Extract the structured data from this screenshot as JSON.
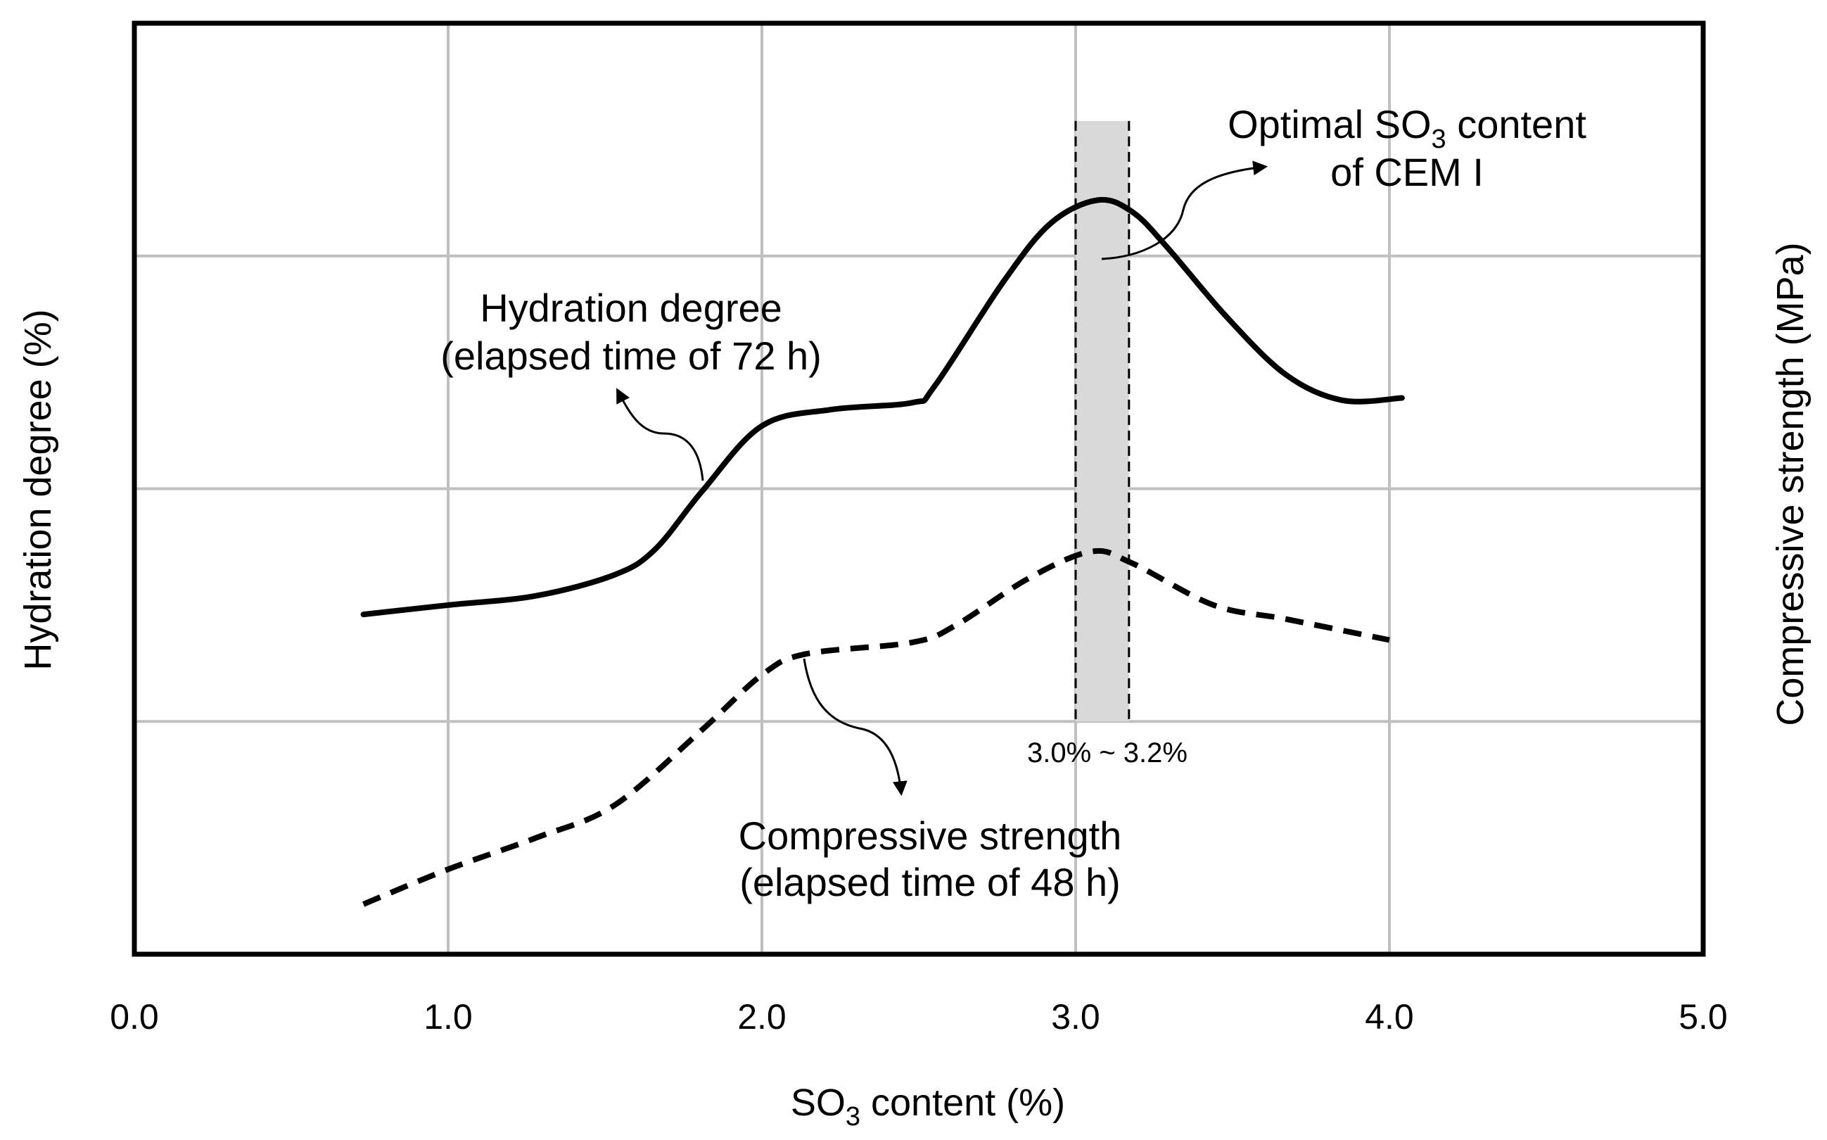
{
  "chart_data": {
    "type": "line",
    "xlabel": "SO3 content (%)",
    "xlabel_main": "SO",
    "xlabel_sub": "3",
    "xlabel_rest": " content (%)",
    "ylabel_left": "Hydration degree (%)",
    "ylabel_right": "Compressive strength (MPa)",
    "xlim": [
      0,
      5
    ],
    "ylim": [
      0,
      4
    ],
    "x_ticks": [
      "0.0",
      "1.0",
      "2.0",
      "3.0",
      "4.0",
      "5.0"
    ],
    "y_ticks_labeled": false,
    "grid": true,
    "series": [
      {
        "name": "Hydration degree (elapsed time of 72 h)",
        "style": "solid",
        "x": [
          0.73,
          1.0,
          1.28,
          1.53,
          1.66,
          1.81,
          2.0,
          2.22,
          2.48,
          2.55,
          2.77,
          2.92,
          3.07,
          3.18,
          3.29,
          3.48,
          3.67,
          3.85,
          4.04
        ],
        "y": [
          1.46,
          1.5,
          1.54,
          1.63,
          1.74,
          1.99,
          2.27,
          2.34,
          2.37,
          2.44,
          2.89,
          3.14,
          3.24,
          3.19,
          3.04,
          2.74,
          2.49,
          2.38,
          2.39
        ]
      },
      {
        "name": "Compressive strength (elapsed time of 48 h)",
        "style": "dashed",
        "x": [
          0.73,
          1.0,
          1.28,
          1.53,
          1.81,
          2.0,
          2.14,
          2.48,
          2.62,
          2.85,
          3.05,
          3.18,
          3.44,
          3.67,
          4.0
        ],
        "y": [
          0.215,
          0.365,
          0.5,
          0.64,
          0.965,
          1.2,
          1.29,
          1.34,
          1.415,
          1.615,
          1.73,
          1.68,
          1.5,
          1.44,
          1.35
        ]
      }
    ],
    "band": {
      "x": [
        3.0,
        3.17
      ],
      "y_top": 3.58,
      "color": "#d9d9d9",
      "label": "3.0% ~ 3.2%"
    },
    "annotations": {
      "hydration_line1": "Hydration degree",
      "hydration_line2": "(elapsed time of 72 h)",
      "strength_line1": "Compressive strength",
      "strength_line2": "(elapsed time  of 48 h)",
      "optimal_line1_main": "Optimal SO",
      "optimal_line1_sub": "3",
      "optimal_line1_rest": " content",
      "optimal_line2": "of CEM I"
    }
  }
}
